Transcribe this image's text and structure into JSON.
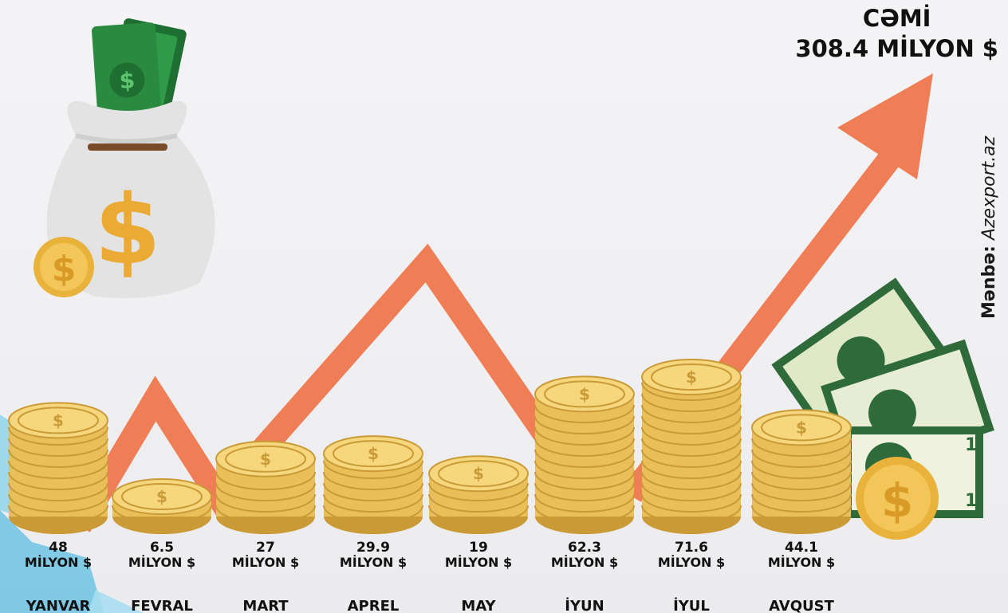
{
  "header": {
    "total_label": "CƏMİ",
    "total_value": "308.4  MİLYON $"
  },
  "source": {
    "label": "Mənbə:",
    "value": "Azexport.az"
  },
  "chart_data": {
    "type": "bar",
    "categories": [
      "YANVAR",
      "FEVRAL",
      "MART",
      "APREL",
      "MAY",
      "İYUN",
      "İYUL",
      "AVQUST"
    ],
    "values": [
      48,
      6.5,
      27,
      29.9,
      19,
      62.3,
      71.6,
      44.1
    ],
    "data_labels": [
      {
        "value": "48",
        "unit": "MİLYON $"
      },
      {
        "value": "6.5",
        "unit": "MİLYON $"
      },
      {
        "value": "27",
        "unit": "MİLYON $"
      },
      {
        "value": "29.9",
        "unit": "MİLYON $"
      },
      {
        "value": "19",
        "unit": "MİLYON $"
      },
      {
        "value": "62.3",
        "unit": "MİLYON $"
      },
      {
        "value": "71.6",
        "unit": "MİLYON $"
      },
      {
        "value": "44.1",
        "unit": "MİLYON $"
      }
    ],
    "grid": false,
    "legend": "none"
  },
  "colors": {
    "coin": "#e9bf59",
    "coin_light": "#f6d77e",
    "coin_dark": "#c99a36",
    "trend_arrow": "#ef7d56",
    "bill_green": "#2f6b3a",
    "bill_light": "#dfe8c7"
  },
  "icons": [
    "money-bag-icon",
    "coin-icon",
    "banknote-icon",
    "trend-arrow-icon"
  ]
}
